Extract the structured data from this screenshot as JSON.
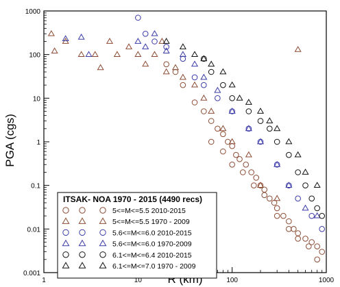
{
  "chart_data": {
    "type": "scatter",
    "xlabel": "R (km)",
    "ylabel": "PGA (cgs)",
    "xscale": "log",
    "yscale": "log",
    "xlim": [
      1,
      1000
    ],
    "ylim": [
      0.001,
      1000
    ],
    "x_ticks": [
      "1",
      "10",
      "100",
      "1000"
    ],
    "y_ticks": [
      "0.001",
      "0.01",
      "0.1",
      "1",
      "10",
      "100",
      "1000"
    ],
    "legend": {
      "title": "ITSAK- NOA 1970 - 2015 (4490 recs)",
      "placement": "bottom-left",
      "entries": [
        {
          "label": "5<=M<=5.5  2010-2015",
          "marker": "circle",
          "color": "#8b4a32"
        },
        {
          "label": "5<=M<=5.5  1970 - 2009",
          "marker": "triangle",
          "color": "#8b4a32"
        },
        {
          "label": "5.6<=M<=6.0  2010-2015",
          "marker": "circle",
          "color": "#3a3aa8"
        },
        {
          "label": "5.6<=M<=6.0  1970-2009",
          "marker": "triangle",
          "color": "#3a3aa8"
        },
        {
          "label": "6.1<=M<=6.4  2010-2015",
          "marker": "circle",
          "color": "#111111"
        },
        {
          "label": "6.1<=M<=7.0  1970 - 2009",
          "marker": "triangle",
          "color": "#111111"
        }
      ]
    },
    "series": [
      {
        "marker": "circle",
        "color": "#8b4a32",
        "x": [
          20,
          25,
          30,
          40,
          50,
          60,
          70,
          80,
          90,
          100,
          110,
          120,
          140,
          160,
          180,
          200,
          220,
          250,
          280,
          300,
          350,
          400,
          450,
          500,
          600,
          700,
          800,
          900,
          60,
          80,
          100,
          130,
          170,
          220,
          300,
          400,
          500,
          650,
          800
        ],
        "y": [
          60,
          40,
          20,
          8,
          5,
          3,
          2,
          1.5,
          1,
          0.8,
          0.5,
          0.4,
          0.3,
          0.2,
          0.15,
          0.1,
          0.08,
          0.05,
          0.04,
          0.03,
          0.02,
          0.015,
          0.01,
          0.008,
          0.006,
          0.005,
          0.004,
          0.003,
          1,
          0.6,
          0.3,
          0.2,
          0.1,
          0.06,
          0.02,
          0.01,
          0.006,
          0.004,
          0.002
        ]
      },
      {
        "marker": "triangle",
        "color": "#8b4a32",
        "x": [
          1.2,
          1.3,
          1.7,
          2.5,
          3.5,
          4,
          5,
          6,
          8,
          10,
          12,
          15,
          18,
          20,
          25,
          30,
          40,
          50,
          60,
          80,
          100,
          150,
          200,
          300,
          500
        ],
        "y": [
          300,
          120,
          200,
          100,
          100,
          50,
          200,
          100,
          150,
          100,
          60,
          100,
          200,
          40,
          50,
          30,
          20,
          10,
          5,
          2,
          1,
          0.5,
          0.1,
          0.05,
          130
        ]
      },
      {
        "marker": "circle",
        "color": "#3a3aa8",
        "x": [
          10,
          12,
          15,
          20,
          30,
          40,
          50,
          70,
          100,
          150,
          200,
          300,
          400,
          500,
          700,
          900
        ],
        "y": [
          700,
          300,
          200,
          150,
          80,
          30,
          20,
          10,
          5,
          2,
          1,
          0.3,
          0.1,
          0.05,
          0.02,
          0.01
        ]
      },
      {
        "marker": "triangle",
        "color": "#3a3aa8",
        "x": [
          1.7,
          2.5,
          3,
          10,
          12,
          15,
          20,
          30,
          40,
          50,
          70,
          100,
          150,
          200,
          300,
          400,
          600,
          800
        ],
        "y": [
          230,
          250,
          100,
          200,
          150,
          300,
          120,
          100,
          60,
          30,
          15,
          5,
          2,
          1,
          0.3,
          0.1,
          0.03,
          0.02
        ]
      },
      {
        "marker": "circle",
        "color": "#111111",
        "x": [
          50,
          60,
          80,
          100,
          150,
          200,
          250,
          300,
          400,
          500,
          600,
          700,
          800,
          900
        ],
        "y": [
          80,
          40,
          20,
          10,
          5,
          3,
          2,
          1,
          0.5,
          0.2,
          0.1,
          0.05,
          0.03,
          0.02
        ]
      },
      {
        "marker": "triangle",
        "color": "#111111",
        "x": [
          20,
          30,
          40,
          50,
          60,
          80,
          100,
          120,
          150,
          200,
          250,
          300,
          400,
          500,
          600,
          800
        ],
        "y": [
          200,
          150,
          100,
          80,
          60,
          40,
          20,
          10,
          8,
          5,
          3,
          2,
          1,
          0.5,
          0.2,
          0.1
        ]
      }
    ]
  }
}
